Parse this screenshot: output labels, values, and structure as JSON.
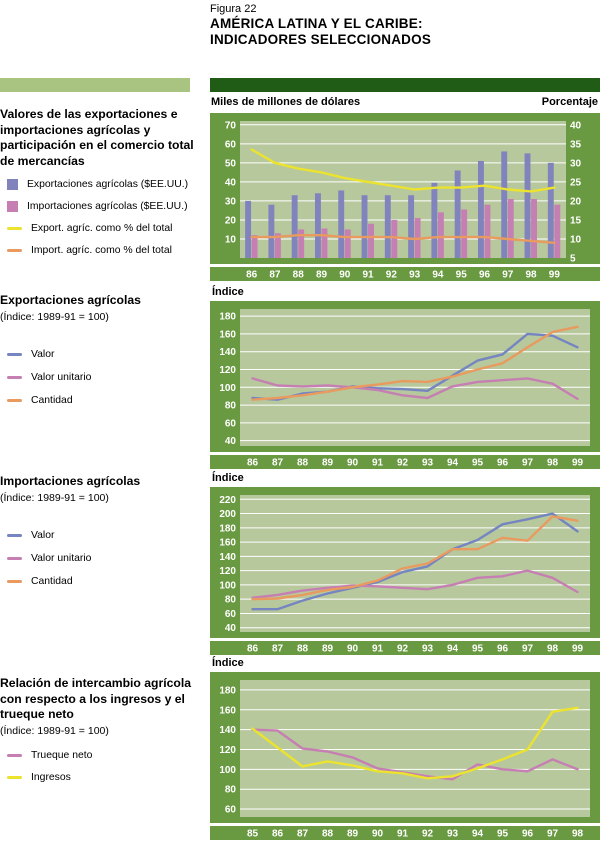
{
  "figure": {
    "label": "Figura 22",
    "title_line1": "AMÉRICA LATINA Y EL CARIBE:",
    "title_line2": "INDICADORES SELECCIONADOS"
  },
  "colors": {
    "dark_green": "#205c16",
    "light_green": "#a9c480",
    "frame_green": "#699940",
    "plot_bg": "#b7c89d",
    "bar_export": "#8183bc",
    "bar_import": "#c57fb2",
    "line_yellow": "#ebe32e",
    "line_orange": "#e99a5f",
    "line_blue": "#7485c1",
    "line_pink": "#c57fb2"
  },
  "sections": [
    {
      "title": "Valores de las exportaciones e importaciones agrícolas y participación en el comercio total de mercancías",
      "legend": [
        {
          "type": "square",
          "color": "#8183bc",
          "label": "Exportaciones agrícolas ($EE.UU.)"
        },
        {
          "type": "square",
          "color": "#c57fb2",
          "label": "Importaciones agrícolas ($EE.UU.)"
        },
        {
          "type": "line",
          "color": "#ebe32e",
          "label": "Export. agríc. como % del total"
        },
        {
          "type": "line",
          "color": "#e99a5f",
          "label": "Import. agríc. como % del total"
        }
      ]
    },
    {
      "title": "Exportaciones agrícolas",
      "subtitle": "(Índice: 1989-91 = 100)",
      "legend": [
        {
          "type": "line",
          "color": "#7485c1",
          "label": "Valor"
        },
        {
          "type": "line",
          "color": "#c57fb2",
          "label": "Valor unitario"
        },
        {
          "type": "line",
          "color": "#e99a5f",
          "label": "Cantidad"
        }
      ]
    },
    {
      "title": "Importaciones agrícolas",
      "subtitle": "(Índice: 1989-91 = 100)",
      "legend": [
        {
          "type": "line",
          "color": "#7485c1",
          "label": "Valor"
        },
        {
          "type": "line",
          "color": "#c57fb2",
          "label": "Valor unitario"
        },
        {
          "type": "line",
          "color": "#e99a5f",
          "label": "Cantidad"
        }
      ]
    },
    {
      "title": "Relación de intercambio agrícola con respecto a los ingresos y el trueque neto",
      "subtitle": "(Índice: 1989-91 = 100)",
      "legend": [
        {
          "type": "line",
          "color": "#c57fb2",
          "label": "Trueque neto"
        },
        {
          "type": "line",
          "color": "#ebe32e",
          "label": "Ingresos"
        }
      ]
    }
  ],
  "chart_data": [
    {
      "type": "bar+line",
      "title": "Valores de las exportaciones e importaciones agrícolas y participación en el comercio total de mercancías",
      "axis_label_left": "Miles de millones de dólares",
      "axis_label_right": "Porcentaje",
      "categories": [
        "86",
        "87",
        "88",
        "89",
        "90",
        "91",
        "92",
        "93",
        "94",
        "95",
        "96",
        "97",
        "98",
        "99"
      ],
      "left_axis": {
        "min": 0,
        "max": 72,
        "ticks": [
          70,
          60,
          50,
          40,
          30,
          20,
          10
        ]
      },
      "right_axis": {
        "min": 5,
        "max": 41,
        "ticks": [
          40,
          35,
          30,
          25,
          20,
          15,
          10,
          5
        ]
      },
      "bar_series": [
        {
          "name": "Exportaciones agrícolas ($EE.UU.)",
          "color": "#8183bc",
          "axis": "left",
          "values": [
            30,
            28,
            33,
            34,
            35.5,
            33,
            33,
            33,
            39.5,
            46,
            51,
            56,
            55,
            50
          ]
        },
        {
          "name": "Importaciones agrícolas ($EE.UU.)",
          "color": "#c57fb2",
          "axis": "left",
          "values": [
            12,
            13,
            15,
            15.5,
            15,
            18,
            20,
            21,
            24,
            25.5,
            28,
            31,
            31,
            28
          ]
        }
      ],
      "line_series": [
        {
          "name": "Export. agríc. como % del total",
          "color": "#ebe32e",
          "axis": "right",
          "values": [
            33.5,
            30,
            28.5,
            27.5,
            26,
            25,
            24,
            23,
            23.5,
            23.5,
            24,
            23,
            22.5,
            23.5
          ]
        },
        {
          "name": "Import. agríc. como % del total",
          "color": "#e99a5f",
          "axis": "right",
          "values": [
            10.5,
            10.5,
            11,
            11,
            10.5,
            10.5,
            10.5,
            10,
            10.5,
            10.5,
            10.5,
            10,
            9.5,
            9
          ]
        }
      ]
    },
    {
      "type": "line",
      "title": "Exportaciones agrícolas (Índice: 1989-91 = 100)",
      "axis_title": "Índice",
      "categories": [
        "86",
        "87",
        "88",
        "89",
        "90",
        "91",
        "92",
        "93",
        "94",
        "95",
        "96",
        "97",
        "98",
        "99"
      ],
      "y_axis": {
        "min": 34,
        "max": 188,
        "ticks": [
          180,
          160,
          140,
          120,
          100,
          80,
          60,
          40
        ]
      },
      "series": [
        {
          "name": "Valor",
          "color": "#7485c1",
          "values": [
            88,
            86,
            93,
            95,
            101,
            99,
            98,
            96,
            113,
            130,
            137,
            160,
            158,
            145
          ]
        },
        {
          "name": "Valor unitario",
          "color": "#c57fb2",
          "values": [
            110,
            102,
            101,
            102,
            100,
            97,
            91,
            88,
            101,
            106,
            108,
            110,
            104,
            87
          ]
        },
        {
          "name": "Cantidad",
          "color": "#e99a5f",
          "values": [
            86,
            88,
            91,
            95,
            100,
            103,
            107,
            106,
            112,
            120,
            127,
            145,
            162,
            168
          ]
        }
      ]
    },
    {
      "type": "line",
      "title": "Importaciones agrícolas (Índice: 1989-91 = 100)",
      "axis_title": "Índice",
      "categories": [
        "86",
        "87",
        "88",
        "89",
        "90",
        "91",
        "92",
        "93",
        "94",
        "95",
        "96",
        "97",
        "98",
        "99"
      ],
      "y_axis": {
        "min": 34,
        "max": 226,
        "ticks": [
          220,
          200,
          180,
          160,
          140,
          120,
          100,
          80,
          60,
          40
        ]
      },
      "series": [
        {
          "name": "Valor",
          "color": "#7485c1",
          "values": [
            66,
            66,
            78,
            88,
            96,
            104,
            118,
            126,
            150,
            163,
            185,
            192,
            200,
            175
          ]
        },
        {
          "name": "Valor unitario",
          "color": "#c57fb2",
          "values": [
            82,
            86,
            92,
            96,
            99,
            98,
            96,
            94,
            100,
            110,
            112,
            120,
            110,
            90
          ]
        },
        {
          "name": "Cantidad",
          "color": "#e99a5f",
          "values": [
            80,
            81,
            86,
            93,
            97,
            106,
            123,
            130,
            150,
            150,
            166,
            162,
            196,
            190
          ]
        }
      ]
    },
    {
      "type": "line",
      "title": "Relación de intercambio agrícola con respecto a los ingresos y el trueque neto (Índice: 1989-91 = 100)",
      "axis_title": "Índice",
      "categories": [
        "85",
        "86",
        "87",
        "88",
        "89",
        "90",
        "91",
        "92",
        "93",
        "94",
        "95",
        "96",
        "97",
        "98"
      ],
      "y_axis": {
        "min": 52,
        "max": 190,
        "ticks": [
          180,
          160,
          140,
          120,
          100,
          80,
          60
        ]
      },
      "series": [
        {
          "name": "Trueque neto",
          "color": "#c57fb2",
          "values": [
            140,
            139,
            121,
            118,
            112,
            101,
            97,
            93,
            90,
            105,
            100,
            98,
            110,
            100
          ]
        },
        {
          "name": "Ingresos",
          "color": "#ebe32e",
          "values": [
            141,
            122,
            103,
            108,
            104,
            98,
            96,
            91,
            93,
            101,
            110,
            120,
            158,
            162
          ]
        }
      ]
    }
  ]
}
